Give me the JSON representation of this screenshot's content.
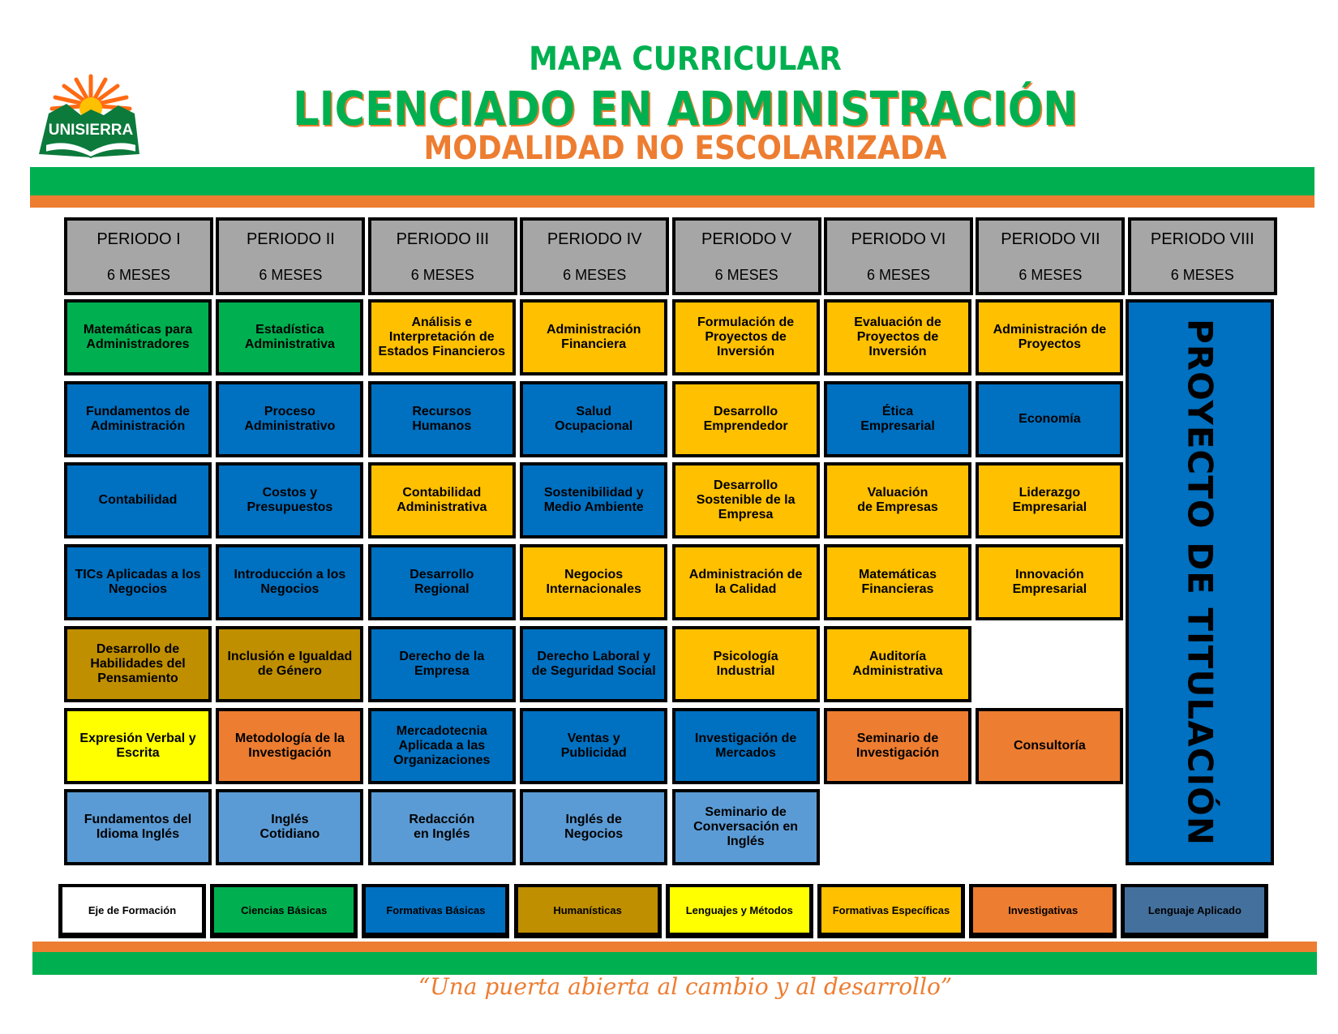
{
  "header": {
    "line1": "MAPA CURRICULAR",
    "line2": "LICENCIADO EN ADMINISTRACIÓN",
    "line3": "MODALIDAD NO ESCOLARIZADA",
    "logo_text": "UNISIERRA"
  },
  "colors": {
    "ciencias_basicas": "#00B050",
    "formativas_basicas": "#0070C0",
    "humanisticas": "#BF8F00",
    "lenguajes_metodos": "#FFFF00",
    "formativas_especificas": "#FFC000",
    "investigativas": "#ED7D31",
    "lenguaje_aplicado": "#5B9BD5",
    "lenguaje_aplicado_legend": "#44709D",
    "header_gray": "#A6A6A6",
    "brand_green": "#00B050",
    "brand_orange": "#ED7D31"
  },
  "periods": [
    {
      "name": "PERIODO I",
      "duration": "6 MESES"
    },
    {
      "name": "PERIODO II",
      "duration": "6 MESES"
    },
    {
      "name": "PERIODO III",
      "duration": "6 MESES"
    },
    {
      "name": "PERIODO IV",
      "duration": "6 MESES"
    },
    {
      "name": "PERIODO V",
      "duration": "6 MESES"
    },
    {
      "name": "PERIODO VI",
      "duration": "6 MESES"
    },
    {
      "name": "PERIODO VII",
      "duration": "6 MESES"
    },
    {
      "name": "PERIODO VIII",
      "duration": "6 MESES"
    }
  ],
  "courses": [
    [
      {
        "name": "Matemáticas para\nAdministradores",
        "cat": "ciencias_basicas"
      },
      {
        "name": "Fundamentos de\nAdministración",
        "cat": "formativas_basicas"
      },
      {
        "name": "Contabilidad",
        "cat": "formativas_basicas"
      },
      {
        "name": "TICs Aplicadas a los\nNegocios",
        "cat": "formativas_basicas"
      },
      {
        "name": "Desarrollo de\nHabilidades del\nPensamiento",
        "cat": "humanisticas"
      },
      {
        "name": "Expresión Verbal y\nEscrita",
        "cat": "lenguajes_metodos"
      },
      {
        "name": "Fundamentos del\nIdioma Inglés",
        "cat": "lenguaje_aplicado"
      }
    ],
    [
      {
        "name": "Estadística\nAdministrativa",
        "cat": "ciencias_basicas"
      },
      {
        "name": "Proceso\nAdministrativo",
        "cat": "formativas_basicas"
      },
      {
        "name": "Costos y\nPresupuestos",
        "cat": "formativas_basicas"
      },
      {
        "name": "Introducción a los\nNegocios",
        "cat": "formativas_basicas"
      },
      {
        "name": "Inclusión e Igualdad\nde Género",
        "cat": "humanisticas"
      },
      {
        "name": "Metodología de la\nInvestigación",
        "cat": "investigativas"
      },
      {
        "name": "Inglés\nCotidiano",
        "cat": "lenguaje_aplicado"
      }
    ],
    [
      {
        "name": "Análisis e\nInterpretación de\nEstados Financieros",
        "cat": "formativas_especificas"
      },
      {
        "name": "Recursos\nHumanos",
        "cat": "formativas_basicas"
      },
      {
        "name": "Contabilidad\nAdministrativa",
        "cat": "formativas_especificas"
      },
      {
        "name": "Desarrollo\nRegional",
        "cat": "formativas_basicas"
      },
      {
        "name": "Derecho de la\nEmpresa",
        "cat": "formativas_basicas"
      },
      {
        "name": "Mercadotecnia\nAplicada a las\nOrganizaciones",
        "cat": "formativas_basicas"
      },
      {
        "name": "Redacción\nen Inglés",
        "cat": "lenguaje_aplicado"
      }
    ],
    [
      {
        "name": "Administración\nFinanciera",
        "cat": "formativas_especificas"
      },
      {
        "name": "Salud\nOcupacional",
        "cat": "formativas_basicas"
      },
      {
        "name": "Sostenibilidad y\nMedio Ambiente",
        "cat": "formativas_basicas"
      },
      {
        "name": "Negocios\nInternacionales",
        "cat": "formativas_especificas"
      },
      {
        "name": "Derecho Laboral y\nde Seguridad Social",
        "cat": "formativas_basicas"
      },
      {
        "name": "Ventas y\nPublicidad",
        "cat": "formativas_basicas"
      },
      {
        "name": "Inglés de\nNegocios",
        "cat": "lenguaje_aplicado"
      }
    ],
    [
      {
        "name": "Formulación de\nProyectos de\nInversión",
        "cat": "formativas_especificas"
      },
      {
        "name": "Desarrollo\nEmprendedor",
        "cat": "formativas_especificas"
      },
      {
        "name": "Desarrollo\nSostenible de la\nEmpresa",
        "cat": "formativas_especificas"
      },
      {
        "name": "Administración de\nla Calidad",
        "cat": "formativas_especificas"
      },
      {
        "name": "Psicología\nIndustrial",
        "cat": "formativas_especificas"
      },
      {
        "name": "Investigación de\nMercados",
        "cat": "formativas_basicas"
      },
      {
        "name": "Seminario de\nConversación en\nInglés",
        "cat": "lenguaje_aplicado"
      }
    ],
    [
      {
        "name": "Evaluación de\nProyectos de\nInversión",
        "cat": "formativas_especificas"
      },
      {
        "name": "Ética\nEmpresarial",
        "cat": "formativas_basicas"
      },
      {
        "name": "Valuación\nde Empresas",
        "cat": "formativas_especificas"
      },
      {
        "name": "Matemáticas\nFinancieras",
        "cat": "formativas_especificas"
      },
      {
        "name": "Auditoría\nAdministrativa",
        "cat": "formativas_especificas"
      },
      {
        "name": "Seminario de\nInvestigación",
        "cat": "investigativas"
      },
      null
    ],
    [
      {
        "name": "Administración de\nProyectos",
        "cat": "formativas_especificas"
      },
      {
        "name": "Economía",
        "cat": "formativas_basicas"
      },
      {
        "name": "Liderazgo\nEmpresarial",
        "cat": "formativas_especificas"
      },
      {
        "name": "Innovación\nEmpresarial",
        "cat": "formativas_especificas"
      },
      null,
      {
        "name": "Consultoría",
        "cat": "investigativas"
      },
      null
    ]
  ],
  "final_project": "PROYECTO DE TITULACIÓN",
  "legend": [
    {
      "label": "Eje de Formación",
      "color": "#FFFFFF"
    },
    {
      "label": "Ciencias Básicas",
      "color": "#00B050"
    },
    {
      "label": "Formativas Básicas",
      "color": "#0070C0"
    },
    {
      "label": "Humanísticas",
      "color": "#BF8F00"
    },
    {
      "label": "Lenguajes y Métodos",
      "color": "#FFFF00"
    },
    {
      "label": "Formativas Específicas",
      "color": "#FFC000"
    },
    {
      "label": "Investigativas",
      "color": "#ED7D31"
    },
    {
      "label": "Lenguaje Aplicado",
      "color": "#44709D"
    }
  ],
  "slogan": "“Una puerta abierta al cambio y al desarrollo”"
}
